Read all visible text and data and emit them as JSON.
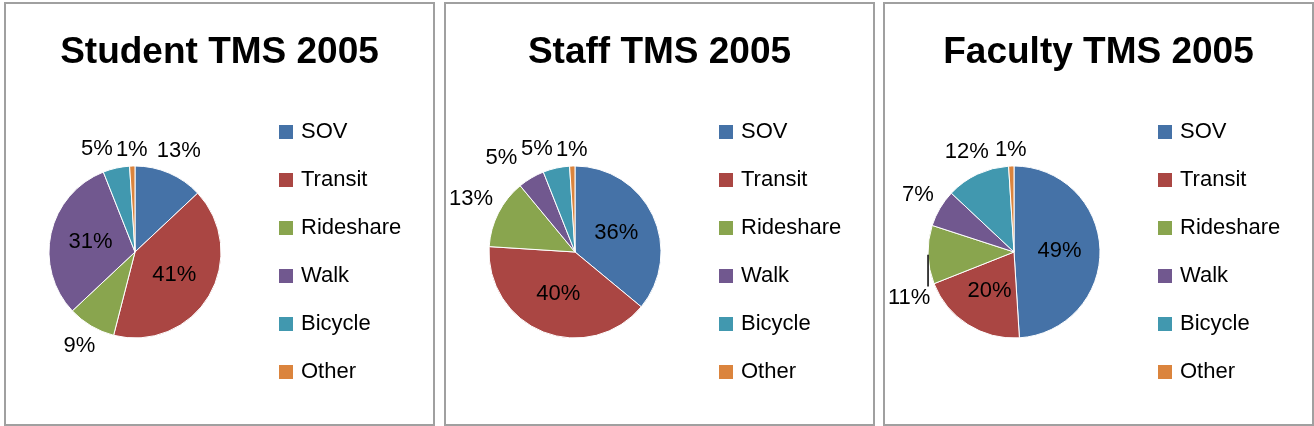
{
  "chart_data": [
    {
      "type": "pie",
      "title": "Student TMS 2005",
      "categories": [
        "SOV",
        "Transit",
        "Rideshare",
        "Walk",
        "Bicycle",
        "Other"
      ],
      "values": [
        13,
        41,
        9,
        31,
        5,
        1
      ],
      "colors": [
        "#4572a7",
        "#aa4643",
        "#89a54e",
        "#71588f",
        "#4198af",
        "#db843d"
      ],
      "value_labels": [
        "13%",
        "41%",
        "9%",
        "31%",
        "5%",
        "1%"
      ],
      "legend": "right"
    },
    {
      "type": "pie",
      "title": "Staff TMS 2005",
      "categories": [
        "SOV",
        "Transit",
        "Rideshare",
        "Walk",
        "Bicycle",
        "Other"
      ],
      "values": [
        36,
        40,
        13,
        5,
        5,
        1
      ],
      "colors": [
        "#4572a7",
        "#aa4643",
        "#89a54e",
        "#71588f",
        "#4198af",
        "#db843d"
      ],
      "value_labels": [
        "36%",
        "40%",
        "13%",
        "5%",
        "5%",
        "1%"
      ],
      "legend": "right"
    },
    {
      "type": "pie",
      "title": "Faculty TMS 2005",
      "categories": [
        "SOV",
        "Transit",
        "Rideshare",
        "Walk",
        "Bicycle",
        "Other"
      ],
      "values": [
        49,
        20,
        11,
        7,
        12,
        1
      ],
      "colors": [
        "#4572a7",
        "#aa4643",
        "#89a54e",
        "#71588f",
        "#4198af",
        "#db843d"
      ],
      "value_labels": [
        "49%",
        "20%",
        "11%",
        "7%",
        "12%",
        "1%"
      ],
      "legend": "right"
    }
  ]
}
